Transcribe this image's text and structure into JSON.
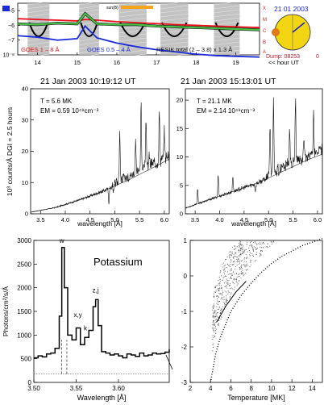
{
  "colors": {
    "goes_long": "#e8101a",
    "goes_short": "#1a2ad8",
    "resik": "#48c248",
    "resik_outline": "#111111",
    "marker": "#f4a51c",
    "orbit_sun": "#f2d614",
    "orbit_body": "#e07818",
    "orbit_title": "#1a24c8",
    "orbit_dump": "#b8182a",
    "side_letters": "#d8202a",
    "shading": "#b8b8b8"
  },
  "header": {
    "goes_long_label": "GOES 1 – 8 Å",
    "goes_short_label": "GOES 0.5 – 4 Å",
    "resik_label": "RESIK total (2 – 3.8) x 1.3 Å",
    "hour_label": "<< hour UT",
    "marker_label": "sun(B)",
    "orbit_date": "21 01 2003",
    "orbit_dump": "Dump: 08253",
    "orbit_zero": "0",
    "side_letters": [
      "X",
      "M",
      "C",
      "B",
      "A"
    ]
  },
  "chart_data": [
    {
      "type": "line",
      "id": "lightcurve",
      "xlabel": "",
      "ylabel": "",
      "xlim": [
        13.5,
        19.6
      ],
      "ylim": [
        -8,
        -4.5
      ],
      "x_ticks": [
        14,
        15,
        16,
        17,
        18,
        19
      ],
      "y_ticks": [
        -8,
        -7,
        -6,
        -5
      ],
      "y_tick_labels": [
        "10⁻⁸",
        "−7",
        "−6",
        "−5"
      ],
      "shaded_intervals": [
        [
          13.75,
          14.3
        ],
        [
          15.05,
          15.55
        ],
        [
          16.05,
          16.75
        ],
        [
          17.1,
          17.8
        ],
        [
          18.45,
          19.1
        ]
      ],
      "series": [
        {
          "name": "GOES 1 – 8 Å",
          "x": [
            13.5,
            14.0,
            14.5,
            15.0,
            15.2,
            15.5,
            16.0,
            16.5,
            17.0,
            17.5,
            18.0,
            18.5,
            19.0,
            19.6
          ],
          "y": [
            -5.55,
            -5.6,
            -5.65,
            -5.7,
            -5.6,
            -5.65,
            -5.75,
            -5.82,
            -5.88,
            -5.95,
            -6.0,
            -6.05,
            -6.1,
            -6.15
          ]
        },
        {
          "name": "GOES 0.5 – 4 Å",
          "x": [
            13.5,
            14.0,
            14.5,
            15.0,
            15.2,
            15.5,
            16.0,
            16.5,
            17.0,
            17.5,
            18.0,
            18.5,
            19.0,
            19.6
          ],
          "y": [
            -6.7,
            -6.8,
            -7.0,
            -6.9,
            -6.05,
            -6.85,
            -7.2,
            -7.45,
            -7.65,
            -7.8,
            -7.95,
            -8.05,
            -8.1,
            -8.15
          ]
        },
        {
          "name": "RESIK total (2 – 3.8) x 1.3 Å",
          "x": [
            13.5,
            14.0,
            14.5,
            15.0,
            15.2,
            15.5,
            16.0,
            16.5,
            17.0,
            17.5,
            18.0,
            18.5,
            19.0,
            19.6
          ],
          "y": [
            -5.9,
            -5.95,
            -5.85,
            -5.9,
            -5.2,
            -5.9,
            -5.95,
            -5.95,
            -6.05,
            -6.1,
            -6.15,
            -6.2,
            -6.25,
            -6.3
          ]
        }
      ],
      "time_labels": [
        "14",
        "15",
        "16",
        "17",
        "18",
        "19"
      ]
    },
    {
      "type": "line",
      "id": "spectrum_1",
      "title": "21 Jan  2003   10:19:12   UT",
      "ylabel": "10³ counts/Å DGI = 2.5 hours",
      "xlabel": "wavelength [Å]",
      "xlim": [
        3.3,
        6.1
      ],
      "ylim": [
        0,
        40
      ],
      "x_ticks": [
        3.5,
        4.0,
        4.5,
        5.0,
        5.5,
        6.0
      ],
      "y_ticks": [
        0,
        10,
        20,
        30,
        40
      ],
      "annotation_T": "T =    5.6 MK",
      "annotation_EM": "EM =  0.59 10⁴⁹cm⁻³",
      "continuum": {
        "x": [
          3.3,
          3.8,
          4.3,
          4.8,
          5.3,
          5.8,
          6.1
        ],
        "y": [
          0.5,
          2.0,
          4.5,
          7.5,
          11.0,
          15.0,
          17.5
        ]
      },
      "lines": [
        {
          "x": 4.88,
          "y": 3.5
        },
        {
          "x": 4.97,
          "y": 5.5
        },
        {
          "x": 5.04,
          "y": 9.0
        },
        {
          "x": 5.1,
          "y": 26.0
        },
        {
          "x": 5.42,
          "y": 22.0
        },
        {
          "x": 5.53,
          "y": 34.0
        },
        {
          "x": 5.63,
          "y": 30.0
        },
        {
          "x": 5.7,
          "y": 18.0
        },
        {
          "x": 5.9,
          "y": 32.0
        },
        {
          "x": 6.0,
          "y": 25.0
        }
      ]
    },
    {
      "type": "line",
      "id": "spectrum_2",
      "title": "21 Jan  2003   15:13:01   UT",
      "xlabel": "wavelength [Å]",
      "xlim": [
        3.3,
        6.1
      ],
      "ylim": [
        0,
        22
      ],
      "x_ticks": [
        3.5,
        4.0,
        4.5,
        5.0,
        5.5,
        6.0
      ],
      "y_ticks": [
        0,
        5,
        10,
        15,
        20
      ],
      "annotation_T": "T =   21.1 MK",
      "annotation_EM": "EM =  2.14 10⁴⁹cm⁻³",
      "continuum": {
        "x": [
          3.3,
          3.8,
          4.3,
          4.8,
          5.3,
          5.8,
          6.1
        ],
        "y": [
          1.0,
          2.5,
          4.0,
          5.5,
          7.5,
          9.5,
          10.5
        ]
      },
      "lines": [
        {
          "x": 3.55,
          "y": 4.5
        },
        {
          "x": 3.97,
          "y": 7.0
        },
        {
          "x": 4.27,
          "y": 6.5
        },
        {
          "x": 4.73,
          "y": 4.0
        },
        {
          "x": 5.03,
          "y": 15.0
        },
        {
          "x": 5.1,
          "y": 19.0
        },
        {
          "x": 5.43,
          "y": 14.0
        },
        {
          "x": 5.55,
          "y": 20.0
        },
        {
          "x": 5.72,
          "y": 13.0
        },
        {
          "x": 5.92,
          "y": 18.0
        }
      ]
    },
    {
      "type": "line",
      "id": "potassium",
      "title": "Potassium",
      "xlabel": "Wavelength [Å]",
      "ylabel": "Photons/cm²/s/Å",
      "xlim": [
        3.5,
        3.66
      ],
      "ylim": [
        0,
        3000
      ],
      "x_ticks": [
        3.5,
        3.55,
        3.6
      ],
      "y_ticks": [
        0,
        500,
        1000,
        1500,
        2000,
        2500,
        3000
      ],
      "x": [
        3.5,
        3.505,
        3.51,
        3.515,
        3.52,
        3.525,
        3.53,
        3.533,
        3.536,
        3.54,
        3.545,
        3.55,
        3.555,
        3.56,
        3.565,
        3.57,
        3.573,
        3.576,
        3.58,
        3.585,
        3.59,
        3.595,
        3.6,
        3.605,
        3.61,
        3.615,
        3.62,
        3.625,
        3.63,
        3.635,
        3.64,
        3.645,
        3.65,
        3.655,
        3.66
      ],
      "y": [
        520,
        560,
        540,
        600,
        620,
        720,
        1400,
        2850,
        2000,
        1000,
        900,
        1150,
        800,
        950,
        1100,
        1600,
        1750,
        1200,
        650,
        620,
        580,
        600,
        560,
        520,
        600,
        580,
        550,
        620,
        560,
        580,
        620,
        600,
        610,
        640,
        700
      ],
      "baseline": 180,
      "peak_labels": [
        {
          "label": "w",
          "x": 3.533,
          "y": 2950
        },
        {
          "label": "x,y",
          "x": 3.552,
          "y": 1380
        },
        {
          "label": "k",
          "x": 3.561,
          "y": 1100
        },
        {
          "label": "z,j",
          "x": 3.573,
          "y": 1900
        }
      ]
    },
    {
      "type": "scatter",
      "id": "temperature",
      "xlabel": "Temperature [MK]",
      "ylabel": "",
      "xlim": [
        2,
        15
      ],
      "ylim": [
        -3,
        1
      ],
      "x_ticks": [
        2,
        4,
        6,
        8,
        10,
        12,
        14
      ],
      "y_ticks": [
        -3,
        -2,
        -1,
        0,
        1
      ],
      "trend": {
        "x": [
          4.0,
          4.5,
          5.0,
          6.0,
          7.0,
          8.0,
          9.0,
          10.0,
          11.0,
          12.0,
          13.0,
          14.0,
          15.0
        ],
        "y": [
          -3.0,
          -2.2,
          -1.7,
          -1.0,
          -0.55,
          -0.2,
          0.1,
          0.35,
          0.55,
          0.7,
          0.85,
          0.95,
          1.05
        ]
      },
      "fit": {
        "x": [
          4.6,
          5.5,
          6.5,
          7.5
        ],
        "y": [
          -1.3,
          -0.85,
          -0.45,
          -0.15
        ]
      }
    }
  ]
}
